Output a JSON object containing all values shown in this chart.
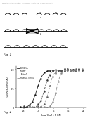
{
  "header_text": "Patent Application Publication    Sep. 22, 2011  Sheet 1 of 8    US 2011/0229895 A1",
  "fig1_label": "Fig. 1",
  "fig2_label": "Fig. 2",
  "ylabel": "FLUORESCENCE (AU)",
  "xlabel": "log[Ca2+] (M)",
  "legend": [
    "Basal GC",
    "RCaMP",
    "Twitch1",
    "RGenGC Venus"
  ],
  "background": "#ffffff",
  "x_range": [
    -8.5,
    -3.8
  ],
  "y_range": [
    0,
    1.1
  ],
  "curves": [
    {
      "x50": -7.1,
      "hill": 2.2,
      "color": "#111111",
      "ls": "-",
      "label": "Basal GC"
    },
    {
      "x50": -6.6,
      "hill": 2.5,
      "color": "#333333",
      "ls": "--",
      "label": "RCaMP"
    },
    {
      "x50": -6.3,
      "hill": 2.8,
      "color": "#555555",
      "ls": ":",
      "label": "Twitch1"
    },
    {
      "x50": -5.8,
      "hill": 3.0,
      "color": "#888888",
      "ls": "-.",
      "label": "RGenGC Venus"
    }
  ]
}
